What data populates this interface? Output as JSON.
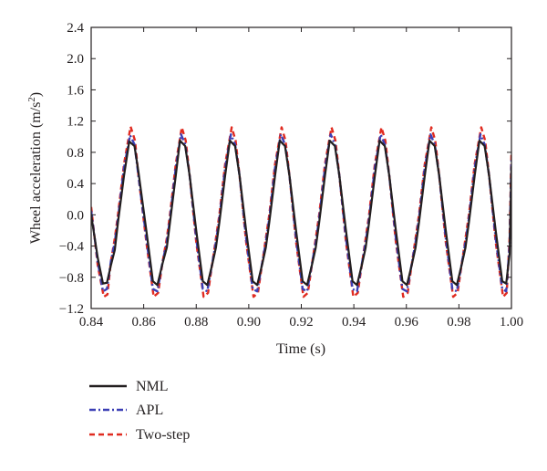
{
  "chart_data": {
    "type": "line",
    "title": "",
    "xlabel": "Time (s)",
    "ylabel_main": "Wheel acceleration (m/s",
    "ylabel_sup": "2",
    "ylabel_close": ")",
    "xlim": [
      0.84,
      1.0
    ],
    "ylim": [
      -1.2,
      2.4
    ],
    "xticks": [
      0.84,
      0.86,
      0.88,
      0.9,
      0.92,
      0.94,
      0.96,
      0.98,
      1.0
    ],
    "xtick_labels": [
      "0.84",
      "0.86",
      "0.88",
      "0.90",
      "0.92",
      "0.94",
      "0.96",
      "0.98",
      "1.00"
    ],
    "yticks": [
      -1.2,
      -0.8,
      -0.4,
      0.0,
      0.4,
      0.8,
      1.2,
      1.6,
      2.0,
      2.4
    ],
    "ytick_labels": [
      "−1.2",
      "−0.8",
      "−0.4",
      "0.0",
      "0.4",
      "0.8",
      "1.2",
      "1.6",
      "2.0",
      "2.4"
    ],
    "grid": false,
    "legend_position": "below",
    "series": [
      {
        "name": "NML",
        "color": "#231f20",
        "style": "solid",
        "points": [
          [
            0.84,
            0.0
          ],
          [
            0.8425,
            -0.55
          ],
          [
            0.8445,
            -0.88
          ],
          [
            0.846,
            -0.87
          ],
          [
            0.8475,
            -0.65
          ],
          [
            0.849,
            -0.45
          ],
          [
            0.8502,
            -0.1
          ],
          [
            0.8525,
            0.5
          ],
          [
            0.8545,
            0.94
          ],
          [
            0.8565,
            0.88
          ],
          [
            0.858,
            0.55
          ],
          [
            0.861,
            -0.2
          ],
          [
            0.8635,
            -0.85
          ],
          [
            0.8652,
            -0.9
          ],
          [
            0.8672,
            -0.62
          ],
          [
            0.8688,
            -0.42
          ],
          [
            0.87,
            -0.1
          ],
          [
            0.8722,
            0.5
          ],
          [
            0.8738,
            0.95
          ],
          [
            0.8758,
            0.88
          ],
          [
            0.8775,
            0.5
          ],
          [
            0.88,
            -0.2
          ],
          [
            0.8825,
            -0.85
          ],
          [
            0.8842,
            -0.9
          ],
          [
            0.8862,
            -0.62
          ],
          [
            0.8875,
            -0.42
          ],
          [
            0.8888,
            -0.1
          ],
          [
            0.891,
            0.5
          ],
          [
            0.8928,
            0.95
          ],
          [
            0.8948,
            0.88
          ],
          [
            0.8965,
            0.5
          ],
          [
            0.899,
            -0.2
          ],
          [
            0.9015,
            -0.85
          ],
          [
            0.9032,
            -0.9
          ],
          [
            0.9052,
            -0.62
          ],
          [
            0.9065,
            -0.42
          ],
          [
            0.9078,
            -0.1
          ],
          [
            0.91,
            0.5
          ],
          [
            0.9118,
            0.95
          ],
          [
            0.9138,
            0.88
          ],
          [
            0.9155,
            0.5
          ],
          [
            0.918,
            -0.2
          ],
          [
            0.9205,
            -0.85
          ],
          [
            0.9222,
            -0.9
          ],
          [
            0.9242,
            -0.62
          ],
          [
            0.9255,
            -0.42
          ],
          [
            0.9268,
            -0.1
          ],
          [
            0.929,
            0.5
          ],
          [
            0.9308,
            0.95
          ],
          [
            0.9328,
            0.88
          ],
          [
            0.9345,
            0.5
          ],
          [
            0.937,
            -0.2
          ],
          [
            0.9395,
            -0.85
          ],
          [
            0.9412,
            -0.9
          ],
          [
            0.9432,
            -0.62
          ],
          [
            0.9445,
            -0.42
          ],
          [
            0.9458,
            -0.1
          ],
          [
            0.948,
            0.5
          ],
          [
            0.9498,
            0.95
          ],
          [
            0.9518,
            0.88
          ],
          [
            0.9535,
            0.5
          ],
          [
            0.956,
            -0.2
          ],
          [
            0.9585,
            -0.85
          ],
          [
            0.9602,
            -0.9
          ],
          [
            0.9622,
            -0.62
          ],
          [
            0.9635,
            -0.42
          ],
          [
            0.9648,
            -0.1
          ],
          [
            0.967,
            0.5
          ],
          [
            0.9688,
            0.95
          ],
          [
            0.9708,
            0.88
          ],
          [
            0.9725,
            0.5
          ],
          [
            0.975,
            -0.2
          ],
          [
            0.9775,
            -0.85
          ],
          [
            0.9792,
            -0.9
          ],
          [
            0.9812,
            -0.62
          ],
          [
            0.9825,
            -0.42
          ],
          [
            0.9838,
            -0.1
          ],
          [
            0.986,
            0.5
          ],
          [
            0.9878,
            0.95
          ],
          [
            0.9898,
            0.88
          ],
          [
            0.9915,
            0.5
          ],
          [
            0.994,
            -0.2
          ],
          [
            0.9965,
            -0.85
          ],
          [
            0.998,
            -0.88
          ],
          [
            0.9993,
            -0.5
          ],
          [
            1.0,
            0.62
          ]
        ]
      },
      {
        "name": "APL",
        "color": "#3b3fb5",
        "style": "dashdot",
        "points": [
          [
            0.84,
            0.05
          ],
          [
            0.8425,
            -0.6
          ],
          [
            0.8445,
            -0.98
          ],
          [
            0.846,
            -0.95
          ],
          [
            0.8475,
            -0.6
          ],
          [
            0.849,
            -0.35
          ],
          [
            0.8502,
            -0.05
          ],
          [
            0.8525,
            0.6
          ],
          [
            0.8548,
            1.02
          ],
          [
            0.8565,
            0.9
          ],
          [
            0.858,
            0.5
          ],
          [
            0.861,
            -0.3
          ],
          [
            0.8635,
            -0.95
          ],
          [
            0.8652,
            -0.98
          ],
          [
            0.8672,
            -0.6
          ],
          [
            0.8688,
            -0.35
          ],
          [
            0.87,
            -0.05
          ],
          [
            0.8722,
            0.6
          ],
          [
            0.8742,
            1.03
          ],
          [
            0.8758,
            0.9
          ],
          [
            0.8775,
            0.5
          ],
          [
            0.88,
            -0.3
          ],
          [
            0.8825,
            -0.95
          ],
          [
            0.8842,
            -0.98
          ],
          [
            0.8862,
            -0.6
          ],
          [
            0.8875,
            -0.35
          ],
          [
            0.8888,
            -0.05
          ],
          [
            0.891,
            0.6
          ],
          [
            0.8932,
            1.03
          ],
          [
            0.8948,
            0.9
          ],
          [
            0.8965,
            0.5
          ],
          [
            0.899,
            -0.3
          ],
          [
            0.9015,
            -0.95
          ],
          [
            0.9032,
            -0.98
          ],
          [
            0.9052,
            -0.6
          ],
          [
            0.9065,
            -0.35
          ],
          [
            0.9078,
            -0.05
          ],
          [
            0.91,
            0.6
          ],
          [
            0.9122,
            1.03
          ],
          [
            0.9138,
            0.9
          ],
          [
            0.9155,
            0.5
          ],
          [
            0.918,
            -0.3
          ],
          [
            0.9205,
            -0.95
          ],
          [
            0.9222,
            -0.98
          ],
          [
            0.9242,
            -0.6
          ],
          [
            0.9255,
            -0.35
          ],
          [
            0.9268,
            -0.05
          ],
          [
            0.929,
            0.6
          ],
          [
            0.9312,
            1.03
          ],
          [
            0.9328,
            0.9
          ],
          [
            0.9345,
            0.5
          ],
          [
            0.937,
            -0.3
          ],
          [
            0.9395,
            -0.95
          ],
          [
            0.9412,
            -0.98
          ],
          [
            0.9432,
            -0.6
          ],
          [
            0.9445,
            -0.35
          ],
          [
            0.9458,
            -0.05
          ],
          [
            0.948,
            0.6
          ],
          [
            0.9502,
            1.03
          ],
          [
            0.9518,
            0.9
          ],
          [
            0.9535,
            0.5
          ],
          [
            0.956,
            -0.3
          ],
          [
            0.9585,
            -0.95
          ],
          [
            0.9602,
            -0.98
          ],
          [
            0.9622,
            -0.6
          ],
          [
            0.9635,
            -0.35
          ],
          [
            0.9648,
            -0.05
          ],
          [
            0.967,
            0.6
          ],
          [
            0.9692,
            1.03
          ],
          [
            0.9708,
            0.9
          ],
          [
            0.9725,
            0.5
          ],
          [
            0.975,
            -0.3
          ],
          [
            0.9775,
            -0.95
          ],
          [
            0.9792,
            -0.98
          ],
          [
            0.9812,
            -0.6
          ],
          [
            0.9825,
            -0.35
          ],
          [
            0.9838,
            -0.05
          ],
          [
            0.986,
            0.6
          ],
          [
            0.9882,
            1.03
          ],
          [
            0.9898,
            0.9
          ],
          [
            0.9915,
            0.5
          ],
          [
            0.994,
            -0.3
          ],
          [
            0.9965,
            -0.95
          ],
          [
            0.998,
            -0.98
          ],
          [
            0.9993,
            -0.4
          ],
          [
            1.0,
            0.7
          ]
        ]
      },
      {
        "name": "Two-step",
        "color": "#e02b20",
        "style": "dashed",
        "points": [
          [
            0.84,
            0.1
          ],
          [
            0.8425,
            -0.65
          ],
          [
            0.8448,
            -1.05
          ],
          [
            0.8462,
            -1.02
          ],
          [
            0.8475,
            -0.6
          ],
          [
            0.849,
            -0.3
          ],
          [
            0.8502,
            0.0
          ],
          [
            0.8525,
            0.65
          ],
          [
            0.855,
            1.13
          ],
          [
            0.8567,
            0.95
          ],
          [
            0.858,
            0.5
          ],
          [
            0.861,
            -0.35
          ],
          [
            0.8638,
            -1.05
          ],
          [
            0.8655,
            -1.0
          ],
          [
            0.8672,
            -0.6
          ],
          [
            0.8688,
            -0.3
          ],
          [
            0.87,
            0.0
          ],
          [
            0.8722,
            0.65
          ],
          [
            0.8745,
            1.12
          ],
          [
            0.876,
            0.95
          ],
          [
            0.8775,
            0.5
          ],
          [
            0.88,
            -0.35
          ],
          [
            0.8828,
            -1.05
          ],
          [
            0.8845,
            -1.0
          ],
          [
            0.8862,
            -0.6
          ],
          [
            0.8875,
            -0.3
          ],
          [
            0.8888,
            0.0
          ],
          [
            0.891,
            0.65
          ],
          [
            0.8935,
            1.12
          ],
          [
            0.895,
            0.95
          ],
          [
            0.8965,
            0.5
          ],
          [
            0.899,
            -0.35
          ],
          [
            0.9018,
            -1.05
          ],
          [
            0.9035,
            -1.0
          ],
          [
            0.9052,
            -0.6
          ],
          [
            0.9065,
            -0.3
          ],
          [
            0.9078,
            0.0
          ],
          [
            0.91,
            0.65
          ],
          [
            0.9125,
            1.12
          ],
          [
            0.914,
            0.95
          ],
          [
            0.9155,
            0.5
          ],
          [
            0.918,
            -0.35
          ],
          [
            0.9208,
            -1.05
          ],
          [
            0.9225,
            -1.0
          ],
          [
            0.9242,
            -0.6
          ],
          [
            0.9255,
            -0.3
          ],
          [
            0.9268,
            0.0
          ],
          [
            0.929,
            0.65
          ],
          [
            0.9315,
            1.12
          ],
          [
            0.933,
            0.95
          ],
          [
            0.9345,
            0.5
          ],
          [
            0.937,
            -0.35
          ],
          [
            0.9398,
            -1.05
          ],
          [
            0.9415,
            -1.0
          ],
          [
            0.9432,
            -0.6
          ],
          [
            0.9445,
            -0.3
          ],
          [
            0.9458,
            0.0
          ],
          [
            0.948,
            0.65
          ],
          [
            0.9505,
            1.12
          ],
          [
            0.952,
            0.95
          ],
          [
            0.9535,
            0.5
          ],
          [
            0.956,
            -0.35
          ],
          [
            0.9588,
            -1.05
          ],
          [
            0.9605,
            -1.0
          ],
          [
            0.9622,
            -0.6
          ],
          [
            0.9635,
            -0.3
          ],
          [
            0.9648,
            0.0
          ],
          [
            0.967,
            0.65
          ],
          [
            0.9695,
            1.12
          ],
          [
            0.971,
            0.95
          ],
          [
            0.9725,
            0.5
          ],
          [
            0.975,
            -0.35
          ],
          [
            0.9778,
            -1.05
          ],
          [
            0.9795,
            -1.0
          ],
          [
            0.9812,
            -0.6
          ],
          [
            0.9825,
            -0.3
          ],
          [
            0.9838,
            0.0
          ],
          [
            0.986,
            0.65
          ],
          [
            0.9885,
            1.12
          ],
          [
            0.99,
            0.95
          ],
          [
            0.9915,
            0.5
          ],
          [
            0.994,
            -0.35
          ],
          [
            0.9968,
            -1.05
          ],
          [
            0.9982,
            -1.0
          ],
          [
            0.9993,
            -0.3
          ],
          [
            1.0,
            0.8
          ]
        ]
      }
    ]
  }
}
